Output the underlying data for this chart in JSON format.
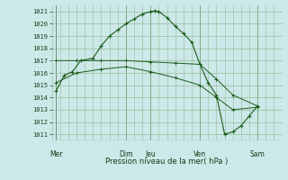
{
  "background_color": "#cce8e8",
  "grid_color": "#99bb99",
  "line_color": "#1a5c1a",
  "xlabel": "Pression niveau de la mer( hPa )",
  "ylim": [
    1010.5,
    1021.5
  ],
  "yticks": [
    1011,
    1012,
    1013,
    1014,
    1015,
    1016,
    1017,
    1018,
    1019,
    1020,
    1021
  ],
  "xlim": [
    0,
    28
  ],
  "x_day_labels": [
    "Mer",
    "Dim",
    "Jeu",
    "Ven",
    "Sam"
  ],
  "x_day_positions": [
    0.5,
    9,
    12,
    18,
    25
  ],
  "x_vlines": [
    0.5,
    9,
    12,
    18,
    25
  ],
  "line1_x": [
    0.5,
    1.5,
    2.5,
    3.5,
    5,
    6,
    7,
    8,
    9,
    10,
    11,
    12,
    12.5,
    13,
    14,
    15,
    16,
    17,
    18,
    19,
    20,
    21,
    22,
    23,
    24,
    25
  ],
  "line1_y": [
    1014.5,
    1015.8,
    1016.1,
    1017.0,
    1017.2,
    1018.2,
    1019.0,
    1019.5,
    1020.0,
    1020.4,
    1020.8,
    1021.0,
    1021.05,
    1021.0,
    1020.5,
    1019.8,
    1019.2,
    1018.5,
    1016.7,
    1015.2,
    1014.2,
    1011.0,
    1011.2,
    1011.7,
    1012.5,
    1013.3
  ],
  "line2_x": [
    0.5,
    3,
    6,
    9,
    12,
    15,
    18,
    20,
    22,
    25
  ],
  "line2_y": [
    1017.0,
    1017.0,
    1017.0,
    1017.0,
    1016.9,
    1016.8,
    1016.7,
    1015.5,
    1014.2,
    1013.3
  ],
  "line3_x": [
    0.5,
    3,
    6,
    9,
    12,
    15,
    18,
    20,
    22,
    25
  ],
  "line3_y": [
    1015.2,
    1016.0,
    1016.3,
    1016.5,
    1016.1,
    1015.6,
    1015.0,
    1014.0,
    1013.0,
    1013.2
  ],
  "ytick_fontsize": 5.0,
  "xtick_fontsize": 5.5,
  "xlabel_fontsize": 6.0
}
